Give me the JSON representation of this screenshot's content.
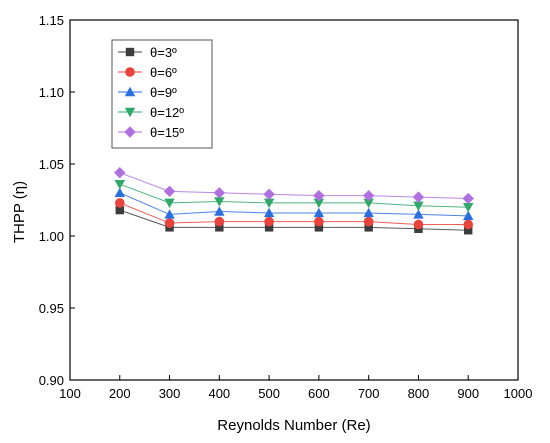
{
  "chart_data": {
    "type": "line",
    "title": "",
    "xlabel": "Reynolds Number (Re)",
    "ylabel": "THPP (η)",
    "xlim": [
      100,
      1000
    ],
    "ylim": [
      0.9,
      1.15
    ],
    "xticks": [
      100,
      200,
      300,
      400,
      500,
      600,
      700,
      800,
      900,
      1000
    ],
    "yticks": [
      0.9,
      0.95,
      1.0,
      1.05,
      1.1,
      1.15
    ],
    "ytick_labels": [
      "0.90",
      "0.95",
      "1.00",
      "1.05",
      "1.10",
      "1.15"
    ],
    "x": [
      200,
      300,
      400,
      500,
      600,
      700,
      800,
      900
    ],
    "grid": false,
    "legend_position": "top-left",
    "series": [
      {
        "name": "θ=3º",
        "color": "#3c3c3c",
        "marker": "square",
        "values": [
          1.018,
          1.006,
          1.006,
          1.006,
          1.006,
          1.006,
          1.005,
          1.004
        ]
      },
      {
        "name": "θ=6º",
        "color": "#e8433c",
        "marker": "circle",
        "values": [
          1.023,
          1.009,
          1.01,
          1.01,
          1.01,
          1.01,
          1.008,
          1.008
        ]
      },
      {
        "name": "θ=9º",
        "color": "#2a6ee0",
        "marker": "triangle-up",
        "values": [
          1.03,
          1.015,
          1.017,
          1.016,
          1.016,
          1.016,
          1.015,
          1.014
        ]
      },
      {
        "name": "θ=12º",
        "color": "#2fa86a",
        "marker": "triangle-down",
        "values": [
          1.036,
          1.023,
          1.024,
          1.023,
          1.023,
          1.023,
          1.021,
          1.02
        ]
      },
      {
        "name": "θ=15º",
        "color": "#b070e0",
        "marker": "diamond",
        "values": [
          1.044,
          1.031,
          1.03,
          1.029,
          1.028,
          1.028,
          1.027,
          1.026
        ]
      }
    ]
  }
}
